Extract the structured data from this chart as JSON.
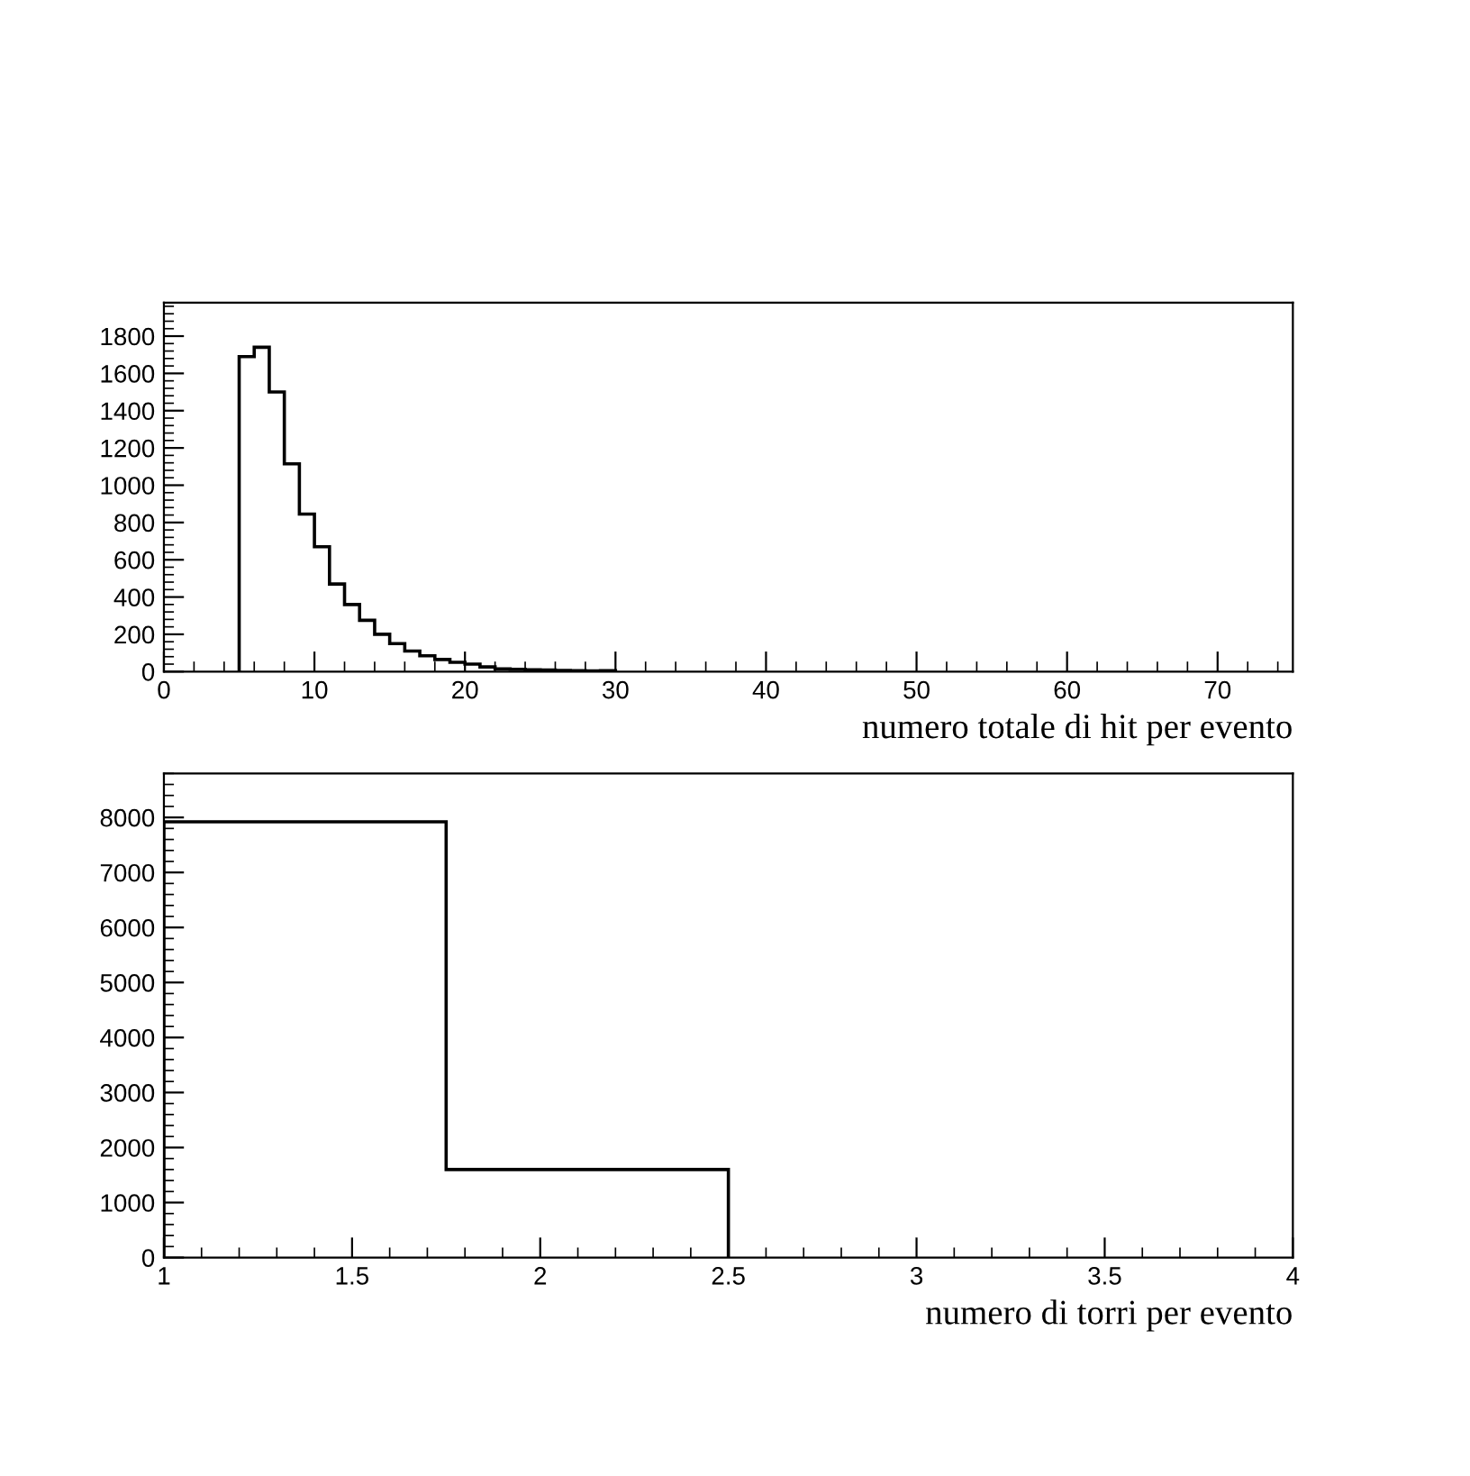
{
  "chart_data": [
    {
      "type": "histogram",
      "xlabel": "numero totale di hit per evento",
      "bins": [
        5,
        6,
        7,
        8,
        9,
        10,
        11,
        12,
        13,
        14,
        15,
        16,
        17,
        18,
        19,
        20,
        21,
        22,
        23,
        24,
        25,
        26,
        27,
        28,
        29,
        30
      ],
      "values": [
        1690,
        1740,
        1500,
        1115,
        845,
        670,
        470,
        360,
        275,
        200,
        150,
        110,
        85,
        65,
        50,
        40,
        25,
        15,
        12,
        10,
        8,
        6,
        5,
        3,
        5
      ],
      "color": "#000000",
      "xlim": [
        0,
        75
      ],
      "xticks": [
        0,
        10,
        20,
        30,
        40,
        50,
        60,
        70
      ],
      "ylim": [
        0,
        1980
      ],
      "yticks": [
        0,
        200,
        400,
        600,
        800,
        1000,
        1200,
        1400,
        1600,
        1800
      ],
      "grid": false
    },
    {
      "type": "histogram",
      "xlabel": "numero di torri per evento",
      "bins": [
        1,
        1.75,
        2.5
      ],
      "values": [
        7920,
        1600
      ],
      "color": "#000000",
      "xlim": [
        1,
        4
      ],
      "xticks": [
        1,
        1.5,
        2,
        2.5,
        3,
        3.5,
        4
      ],
      "ylim": [
        0,
        8800
      ],
      "yticks": [
        0,
        1000,
        2000,
        3000,
        4000,
        5000,
        6000,
        7000,
        8000
      ],
      "grid": false
    }
  ]
}
